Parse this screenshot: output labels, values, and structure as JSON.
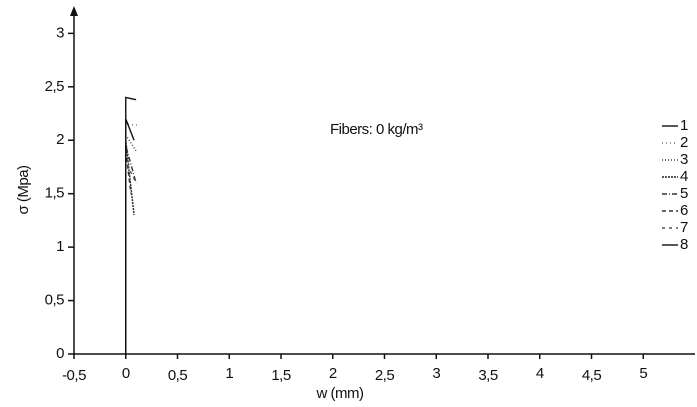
{
  "chart_data": {
    "type": "line",
    "annotation": "Fibers: 0 kg/m³",
    "x_label": "w (mm)",
    "y_label": "σ (Mpa)",
    "xlim": [
      -0.5,
      5.5
    ],
    "ylim": [
      0,
      3.2
    ],
    "xticks": [
      {
        "value": -0.5,
        "label": "-0,5"
      },
      0,
      {
        "value": 0.5,
        "label": "0,5"
      },
      1,
      {
        "value": 1.5,
        "label": "1,5"
      },
      2,
      {
        "value": 2.5,
        "label": "2,5"
      },
      3,
      {
        "value": 3.5,
        "label": "3,5"
      },
      4,
      {
        "value": 4.5,
        "label": "4,5"
      },
      5
    ],
    "yticks": [
      0,
      {
        "value": 0.5,
        "label": "0,5"
      },
      1,
      {
        "value": 1.5,
        "label": "1,5"
      },
      2,
      {
        "value": 2.5,
        "label": "2,5"
      },
      3
    ],
    "legend": "right",
    "series": [
      {
        "name": "1",
        "color": "#111111",
        "dash": "none",
        "x": [
          0,
          0,
          0.1
        ],
        "values": [
          0,
          2.4,
          2.38
        ]
      },
      {
        "name": "2",
        "color": "#777777",
        "dash": "1 3",
        "x": [
          0,
          0,
          0.12
        ],
        "values": [
          0,
          2.15,
          2.14
        ]
      },
      {
        "name": "3",
        "color": "#444444",
        "dash": "1 2",
        "x": [
          0,
          0,
          0.1
        ],
        "values": [
          0,
          2.05,
          1.9
        ]
      },
      {
        "name": "4",
        "color": "#222222",
        "dash": "2 1",
        "x": [
          0,
          0,
          0.08
        ],
        "values": [
          0,
          2.0,
          1.3
        ]
      },
      {
        "name": "5",
        "color": "#333333",
        "dash": "5 2 1 2",
        "x": [
          0,
          0,
          0.1
        ],
        "values": [
          0,
          1.95,
          1.6
        ]
      },
      {
        "name": "6",
        "color": "#333333",
        "dash": "4 3",
        "x": [
          0,
          0,
          0.05
        ],
        "values": [
          0,
          1.9,
          1.5
        ]
      },
      {
        "name": "7",
        "color": "#555555",
        "dash": "3 4",
        "x": [
          0,
          0,
          0.1
        ],
        "values": [
          0,
          1.8,
          1.6
        ]
      },
      {
        "name": "8",
        "color": "#111111",
        "dash": "none",
        "x": [
          0,
          0,
          0.08
        ],
        "values": [
          0,
          2.2,
          2.0
        ]
      }
    ]
  }
}
